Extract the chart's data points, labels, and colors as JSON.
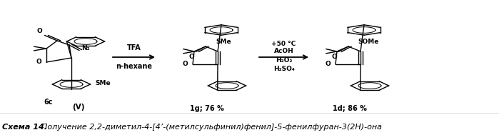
{
  "bg_color": "#ffffff",
  "fig_width": 6.99,
  "fig_height": 1.89,
  "dpi": 100,
  "bottom_bold_italic": "Схема 14.",
  "bottom_italic": "Получение 2,2-диметил-4-[4’-(метилсульфинил)фенил]-5-фенилфуран-3(2H)-она",
  "label_6c": "6c",
  "label_V": "(V)",
  "label_1g": "1g; 76 %",
  "label_1d": "1d; 86 %",
  "arrow1_top": "TFA",
  "arrow1_bot": "n-hexane",
  "arrow2_line1": "+50 °C",
  "arrow2_line2": "AcOH",
  "arrow2_line3": "H₂O₂",
  "arrow2_line4": "H₂SO₄",
  "label_N2": "N₂",
  "label_SMe": "SMe",
  "label_SOMe": "SOMe",
  "label_O": "O"
}
